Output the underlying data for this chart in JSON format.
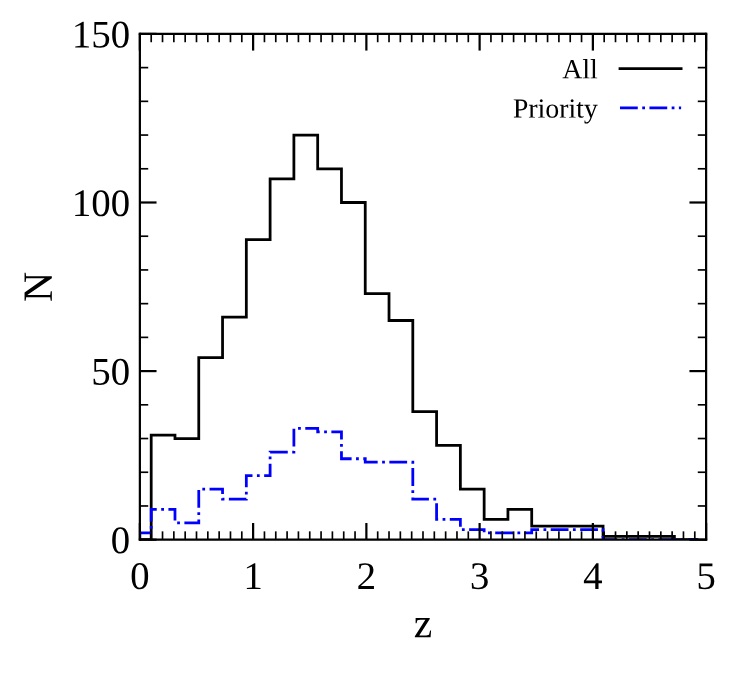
{
  "chart_data": {
    "type": "histogram",
    "xlabel": "z",
    "ylabel": "N",
    "bins": [
      0,
      0.1,
      0.31,
      0.52,
      0.73,
      0.94,
      1.15,
      1.36,
      1.57,
      1.78,
      1.99,
      2.2,
      2.41,
      2.62,
      2.83,
      3.04,
      3.25,
      3.46,
      3.67,
      3.88,
      4.09,
      4.3,
      4.51,
      4.72,
      4.93
    ],
    "series": [
      {
        "name": "All",
        "color": "#000000",
        "line_style": "solid",
        "values": [
          0,
          31,
          30,
          54,
          66,
          89,
          107,
          120,
          110,
          100,
          73,
          65,
          38,
          28,
          15,
          6,
          9,
          4,
          4,
          4,
          1,
          1,
          1,
          0
        ]
      },
      {
        "name": "Priority",
        "color": "#0000ff",
        "line_style": "dashdot",
        "values": [
          2,
          9,
          5,
          15,
          12,
          19,
          26,
          33,
          32,
          24,
          23,
          23,
          12,
          6,
          3,
          2,
          2,
          3,
          3,
          3,
          0,
          0,
          0,
          0
        ]
      }
    ],
    "xlim": [
      0,
      5
    ],
    "xticks": [
      0,
      1,
      2,
      3,
      4,
      5
    ],
    "ylim": [
      0,
      150
    ],
    "yticks": [
      0,
      50,
      100,
      150
    ],
    "grid": false,
    "legend": "top right"
  }
}
